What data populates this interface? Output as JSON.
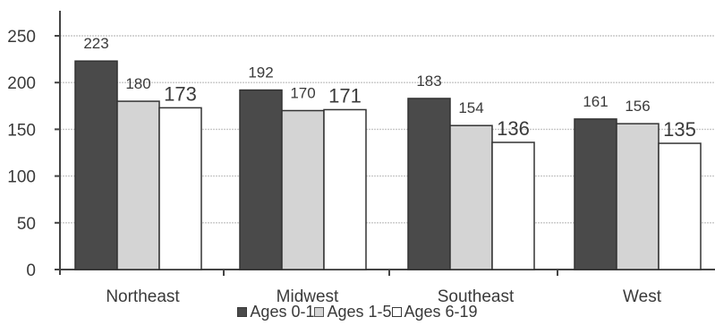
{
  "chart_data": {
    "type": "bar",
    "categories": [
      "Northeast",
      "Midwest",
      "Southeast",
      "West"
    ],
    "series": [
      {
        "name": "Ages 0-1",
        "values": [
          223,
          192,
          183,
          161
        ],
        "color": "#4a4a4a"
      },
      {
        "name": "Ages 1-5",
        "values": [
          180,
          170,
          154,
          156
        ],
        "color": "#d4d4d4"
      },
      {
        "name": "Ages 6-19",
        "values": [
          173,
          171,
          136,
          135
        ],
        "color": "#ffffff"
      }
    ],
    "data_labels": [
      [
        "223",
        "192",
        "183",
        "161"
      ],
      [
        "180",
        "170",
        "154",
        "156"
      ],
      [
        "173",
        "171",
        "136",
        "135"
      ]
    ],
    "yticks": [
      "0",
      "50",
      "100",
      "150",
      "200",
      "250"
    ],
    "ylim": [
      0,
      270
    ],
    "grid": false,
    "legend_position": "bottom"
  }
}
